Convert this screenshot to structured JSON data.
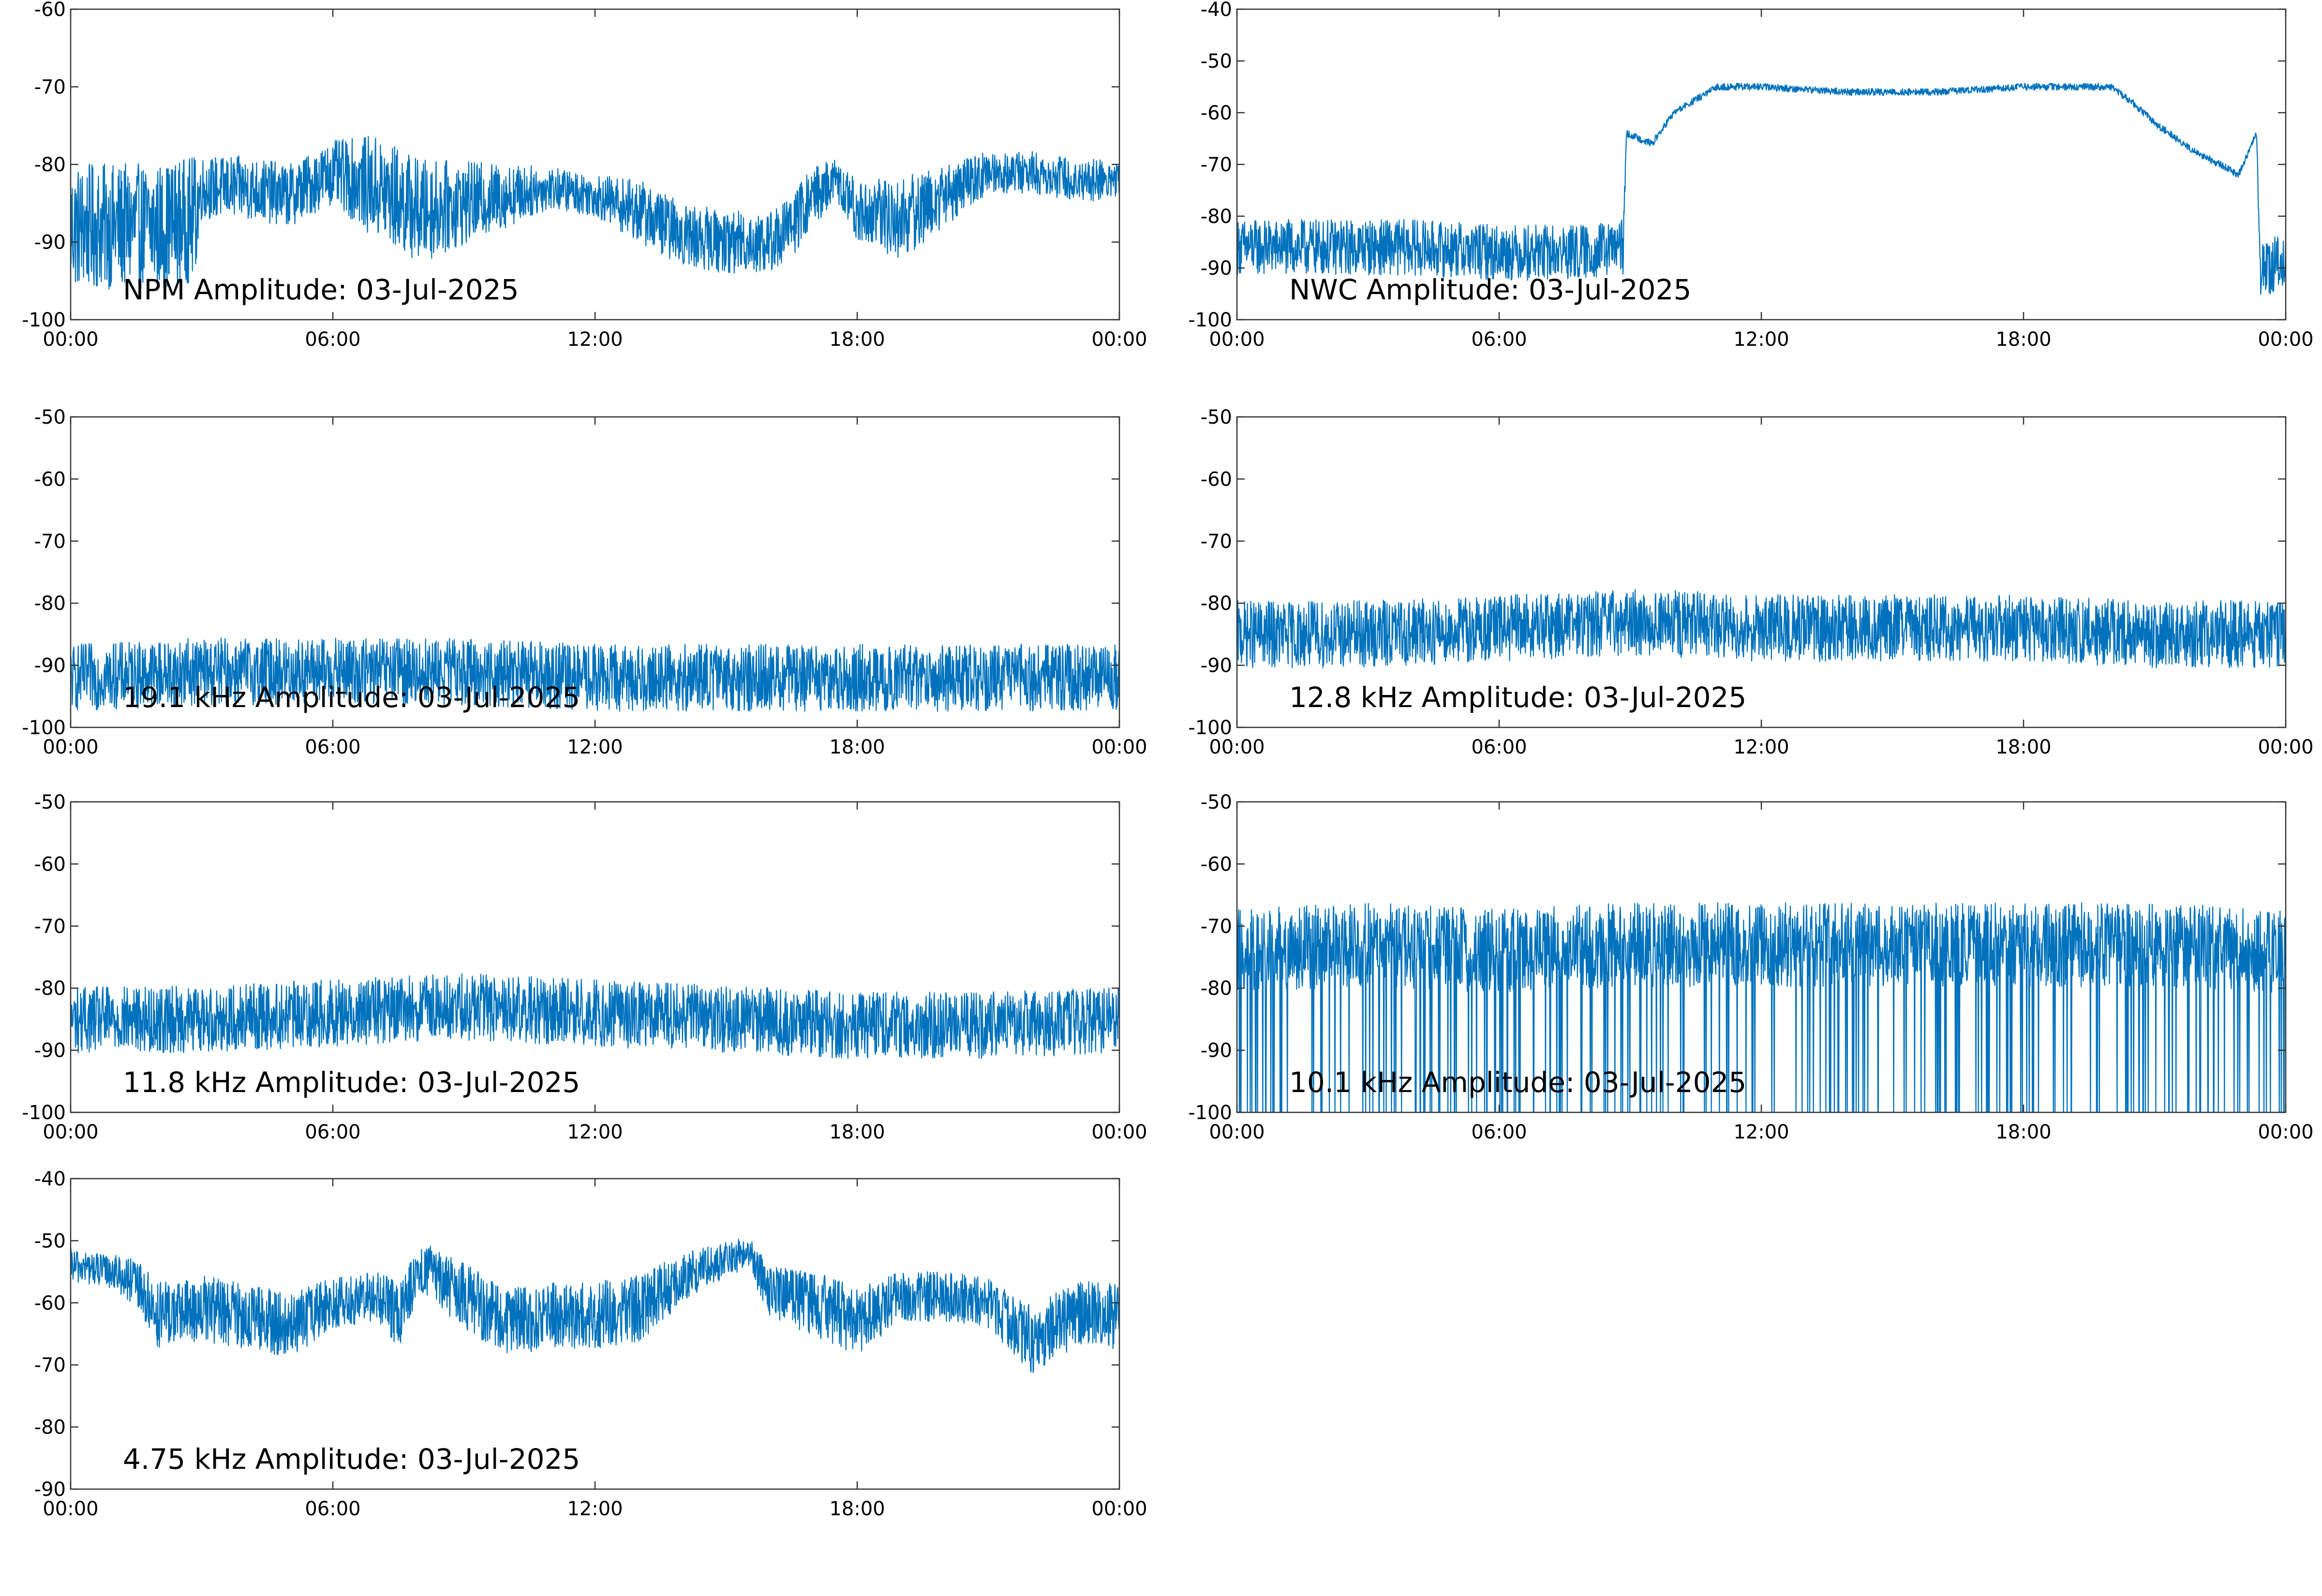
{
  "figure": {
    "line_color": "#0072BD"
  },
  "x_tick_labels": [
    "00:00",
    "06:00",
    "12:00",
    "18:00",
    "00:00"
  ],
  "chart_data": [
    {
      "type": "line",
      "title": "NPM Amplitude: 03-Jul-2025",
      "xlabel": "",
      "ylabel": "",
      "xlim": [
        "00:00",
        "24:00"
      ],
      "ylim": [
        -100,
        -60
      ],
      "yticks": [
        -100,
        -90,
        -80,
        -70,
        -60
      ],
      "series": [
        {
          "x": [
            "00:00",
            "01:00",
            "02:00",
            "02:50",
            "03:00",
            "04:00",
            "05:00",
            "06:00",
            "07:00",
            "08:00",
            "09:00",
            "10:00",
            "11:00",
            "12:00",
            "13:00",
            "14:00",
            "15:00",
            "16:00",
            "16:30",
            "17:00",
            "17:30",
            "18:00",
            "19:00",
            "20:00",
            "21:00",
            "22:00",
            "23:00",
            "24:00"
          ],
          "mean": [
            -88,
            -88,
            -88,
            -87,
            -83,
            -83,
            -84,
            -81,
            -83,
            -86,
            -85,
            -84,
            -83,
            -84,
            -86,
            -89,
            -90,
            -90,
            -88,
            -84,
            -82,
            -86,
            -87,
            -84,
            -81,
            -81,
            -82,
            -82
          ],
          "spread": [
            6,
            6,
            6,
            6,
            3,
            3,
            3,
            3,
            5,
            5,
            4,
            3,
            2,
            2,
            3,
            3,
            3,
            3,
            3,
            3,
            2,
            3,
            4,
            3,
            2,
            2,
            2,
            2
          ]
        }
      ]
    },
    {
      "type": "line",
      "title": "NWC Amplitude: 03-Jul-2025",
      "xlabel": "",
      "ylabel": "",
      "xlim": [
        "00:00",
        "24:00"
      ],
      "ylim": [
        -100,
        -40
      ],
      "yticks": [
        -100,
        -90,
        -80,
        -70,
        -60,
        -50,
        -40
      ],
      "series": [
        {
          "x": [
            "00:00",
            "02:00",
            "04:00",
            "06:00",
            "08:00",
            "08:50",
            "08:55",
            "09:30",
            "10:00",
            "11:00",
            "12:00",
            "14:00",
            "16:00",
            "18:00",
            "20:00",
            "20:30",
            "21:00",
            "22:00",
            "22:30",
            "22:55",
            "23:20",
            "23:25",
            "24:00"
          ],
          "mean": [
            -86,
            -86,
            -86,
            -87,
            -87,
            -86,
            -64,
            -66,
            -60,
            -55,
            -55,
            -56,
            -56,
            -55,
            -55,
            -58,
            -62,
            -68,
            -70,
            -72,
            -64,
            -90,
            -89
          ],
          "spread": [
            4,
            4,
            4,
            4,
            4,
            4,
            0.5,
            0.5,
            0.5,
            0.5,
            0.5,
            0.5,
            0.5,
            0.5,
            0.5,
            0.5,
            0.5,
            0.5,
            0.5,
            0.5,
            0.5,
            4,
            4
          ]
        }
      ]
    },
    {
      "type": "line",
      "title": "19.1 kHz Amplitude: 03-Jul-2025",
      "xlabel": "",
      "ylabel": "",
      "xlim": [
        "00:00",
        "24:00"
      ],
      "ylim": [
        -100,
        -50
      ],
      "yticks": [
        -100,
        -90,
        -80,
        -70,
        -60,
        -50
      ],
      "series": [
        {
          "x": [
            "00:00",
            "03:00",
            "06:00",
            "09:00",
            "12:00",
            "15:00",
            "18:00",
            "21:00",
            "24:00"
          ],
          "mean": [
            -92,
            -91,
            -91,
            -91,
            -92,
            -92,
            -92,
            -92,
            -92
          ],
          "spread": [
            4,
            4,
            4,
            4,
            4,
            4,
            4,
            4,
            4
          ]
        }
      ]
    },
    {
      "type": "line",
      "title": "12.8 kHz Amplitude: 03-Jul-2025",
      "xlabel": "",
      "ylabel": "",
      "xlim": [
        "00:00",
        "24:00"
      ],
      "ylim": [
        -100,
        -50
      ],
      "yticks": [
        -100,
        -90,
        -80,
        -70,
        -60,
        -50
      ],
      "series": [
        {
          "x": [
            "00:00",
            "03:00",
            "06:00",
            "09:00",
            "12:00",
            "15:00",
            "18:00",
            "21:00",
            "24:00"
          ],
          "mean": [
            -85,
            -85,
            -84,
            -83,
            -84,
            -84,
            -84,
            -85,
            -85
          ],
          "spread": [
            4,
            4,
            4,
            4,
            4,
            4,
            4,
            4,
            4
          ]
        }
      ]
    },
    {
      "type": "line",
      "title": "11.8 kHz Amplitude: 03-Jul-2025",
      "xlabel": "",
      "ylabel": "",
      "xlim": [
        "00:00",
        "24:00"
      ],
      "ylim": [
        -100,
        -50
      ],
      "yticks": [
        -100,
        -90,
        -80,
        -70,
        -60,
        -50
      ],
      "series": [
        {
          "x": [
            "00:00",
            "03:00",
            "06:00",
            "09:00",
            "12:00",
            "15:00",
            "18:00",
            "21:00",
            "24:00"
          ],
          "mean": [
            -85,
            -85,
            -84,
            -83,
            -84,
            -85,
            -86,
            -86,
            -85
          ],
          "spread": [
            4,
            4,
            4,
            4,
            4,
            4,
            4,
            4,
            4
          ]
        }
      ]
    },
    {
      "type": "line",
      "title": "10.1 kHz Amplitude: 03-Jul-2025",
      "xlabel": "",
      "ylabel": "",
      "xlim": [
        "00:00",
        "24:00"
      ],
      "ylim": [
        -100,
        -50
      ],
      "yticks": [
        -100,
        -90,
        -80,
        -70,
        -60,
        -50
      ],
      "series": [
        {
          "x": [
            "00:00",
            "03:00",
            "06:00",
            "09:00",
            "12:00",
            "15:00",
            "18:00",
            "21:00",
            "24:00"
          ],
          "mean": [
            -74,
            -73,
            -74,
            -73,
            -73,
            -73,
            -73,
            -73,
            -74
          ],
          "spread": [
            5,
            5,
            5,
            5,
            5,
            5,
            5,
            5,
            5
          ],
          "dropout_floor": -100
        }
      ]
    },
    {
      "type": "line",
      "title": "4.75 kHz Amplitude: 03-Jul-2025",
      "xlabel": "",
      "ylabel": "",
      "xlim": [
        "00:00",
        "24:00"
      ],
      "ylim": [
        -90,
        -40
      ],
      "yticks": [
        -90,
        -80,
        -70,
        -60,
        -50,
        -40
      ],
      "series": [
        {
          "x": [
            "00:00",
            "01:00",
            "01:30",
            "02:00",
            "03:00",
            "04:00",
            "05:00",
            "06:00",
            "07:00",
            "07:30",
            "08:00",
            "09:00",
            "10:00",
            "11:00",
            "12:00",
            "13:00",
            "14:00",
            "15:00",
            "15:30",
            "16:00",
            "17:00",
            "18:00",
            "19:00",
            "20:00",
            "21:00",
            "22:00",
            "23:00",
            "24:00"
          ],
          "mean": [
            -54,
            -55,
            -57,
            -62,
            -61,
            -62,
            -64,
            -60,
            -59,
            -62,
            -54,
            -59,
            -63,
            -62,
            -62,
            -61,
            -56,
            -53,
            -52,
            -58,
            -60,
            -63,
            -59,
            -59,
            -60,
            -66,
            -62,
            -62
          ],
          "spread": [
            2,
            2,
            3,
            4,
            4,
            4,
            4,
            3,
            3,
            4,
            3,
            4,
            4,
            4,
            4,
            4,
            3,
            2,
            2,
            3,
            4,
            4,
            3,
            3,
            3,
            4,
            4,
            4
          ]
        }
      ]
    }
  ]
}
